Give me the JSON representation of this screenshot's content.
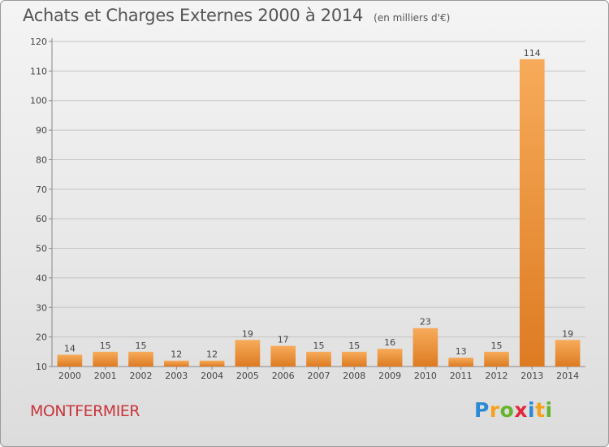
{
  "header": {
    "title": "Achats et Charges Externes 2000 à 2014",
    "unit": "(en milliers d'€)"
  },
  "footer": {
    "city": "MONTFERMIER",
    "logo_text": "Proxiti",
    "logo_letters": [
      {
        "ch": "P",
        "color": "#2a8ad6"
      },
      {
        "ch": "r",
        "color": "#f5a21b"
      },
      {
        "ch": "o",
        "color": "#67b32e"
      },
      {
        "ch": "x",
        "color": "#e2283a"
      },
      {
        "ch": "i",
        "color": "#2a8ad6"
      },
      {
        "ch": "t",
        "color": "#f5a21b"
      },
      {
        "ch": "i",
        "color": "#67b32e"
      }
    ]
  },
  "colors": {
    "bar_light": "#f7ab5a",
    "bar_dark": "#dd7b22",
    "grid": "#c4c4c4",
    "axis": "#888888",
    "text": "#444444",
    "city": "#c8353b"
  },
  "chart_data": {
    "type": "bar",
    "title": "Achats et Charges Externes 2000 à 2014",
    "subtitle": "(en milliers d'€)",
    "xlabel": "",
    "ylabel": "",
    "categories": [
      "2000",
      "2001",
      "2002",
      "2003",
      "2004",
      "2005",
      "2006",
      "2007",
      "2008",
      "2009",
      "2010",
      "2011",
      "2012",
      "2013",
      "2014"
    ],
    "values": [
      14,
      15,
      15,
      12,
      12,
      19,
      17,
      15,
      15,
      16,
      23,
      13,
      15,
      114,
      19
    ],
    "ylim": [
      10,
      120
    ],
    "yticks": [
      10,
      20,
      30,
      40,
      50,
      60,
      70,
      80,
      90,
      100,
      110,
      120
    ],
    "grid": true,
    "data_labels": true
  }
}
